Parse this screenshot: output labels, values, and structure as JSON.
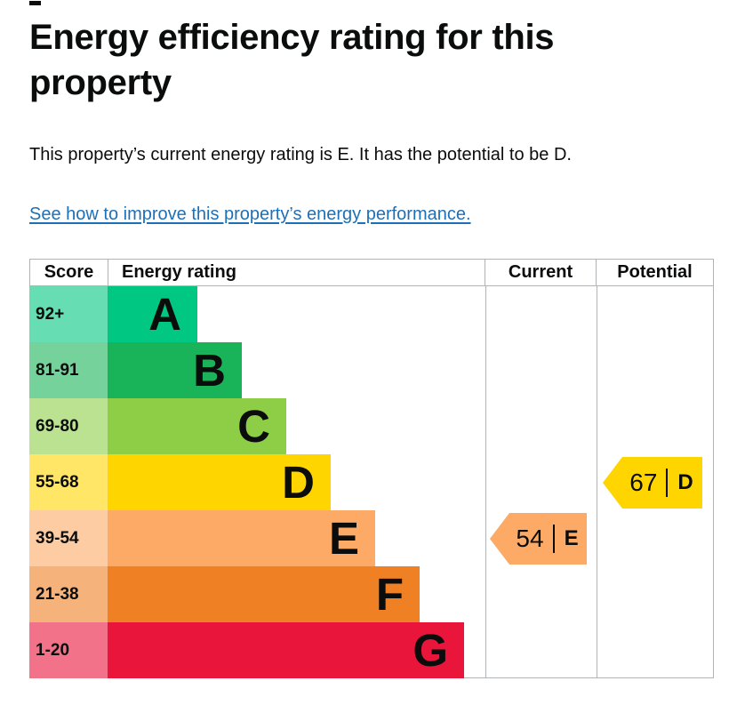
{
  "page": {
    "title": "Energy efficiency rating for this property",
    "intro": "This property’s current energy rating is E. It has the potential to be D.",
    "link_text": "See how to improve this property’s energy performance."
  },
  "colors": {
    "text": "#0b0c0c",
    "link": "#1d70b8",
    "grid_line": "#b1b4b6"
  },
  "chart_data": {
    "type": "bar",
    "title": "Energy efficiency rating for this property",
    "columns": [
      "Score",
      "Energy rating",
      "Current",
      "Potential"
    ],
    "bands": [
      {
        "letter": "A",
        "score_range": "92+",
        "color": "#00c781",
        "score_cell_color": "#66ddb3"
      },
      {
        "letter": "B",
        "score_range": "81-91",
        "color": "#19b459",
        "score_cell_color": "#75d29b"
      },
      {
        "letter": "C",
        "score_range": "69-80",
        "color": "#8dce46",
        "score_cell_color": "#bbe290"
      },
      {
        "letter": "D",
        "score_range": "55-68",
        "color": "#ffd500",
        "score_cell_color": "#ffe666"
      },
      {
        "letter": "E",
        "score_range": "39-54",
        "color": "#fcaa65",
        "score_cell_color": "#fdcca3"
      },
      {
        "letter": "F",
        "score_range": "21-38",
        "color": "#ef8023",
        "score_cell_color": "#f5b37b"
      },
      {
        "letter": "G",
        "score_range": "1-20",
        "color": "#e9153b",
        "score_cell_color": "#f27389"
      }
    ],
    "current": {
      "value": "54",
      "band": "E"
    },
    "potential": {
      "value": "67",
      "band": "D"
    }
  }
}
